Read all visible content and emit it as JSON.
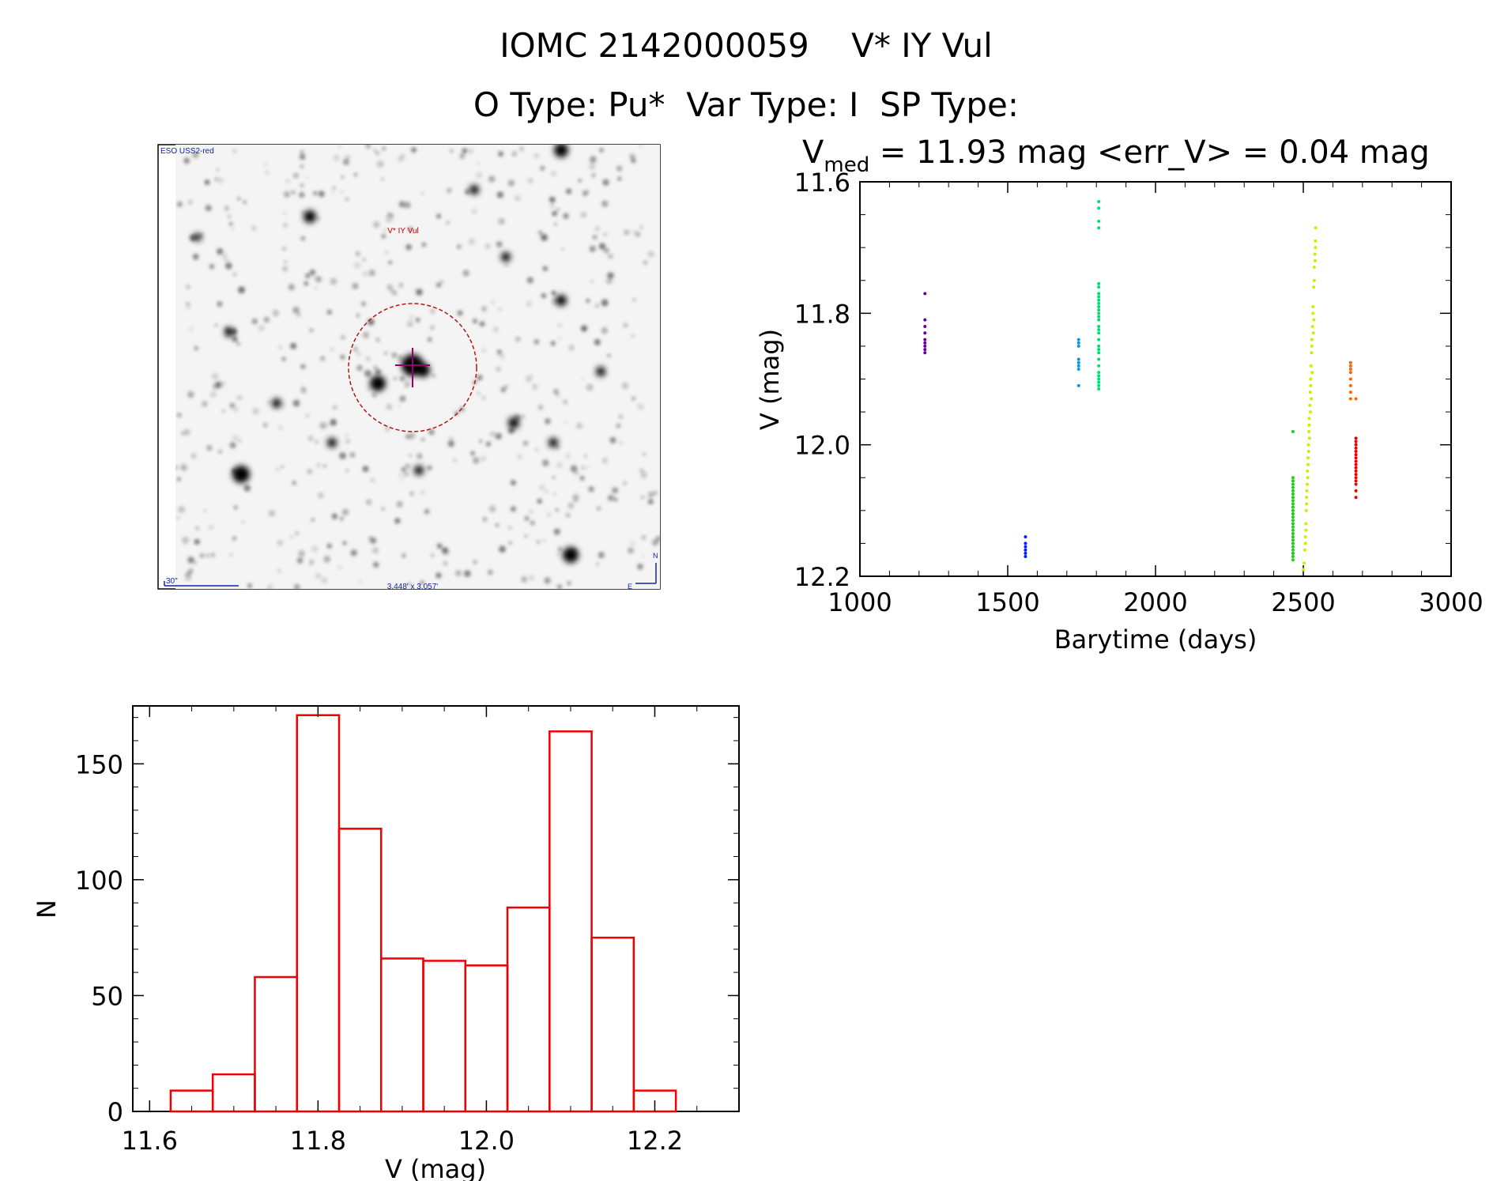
{
  "header": {
    "title": "IOMC 2142000059    V* IY Vul",
    "subtitle": "O Type: Pu*  Var Type: I  SP Type:"
  },
  "image_panel": {
    "survey_label": "ESO USS2-red",
    "target_label": "V* IY Vul",
    "scale_label": "30\"",
    "size_label": "3.448' x 3.057'",
    "north_label": "N",
    "east_label": "E"
  },
  "chart_data": [
    {
      "type": "scatter",
      "title_prefix": "V",
      "title_sub": "med",
      "title_suffix": " = 11.93 mag <err_V> = 0.04 mag",
      "xlabel": "Barytime (days)",
      "ylabel": "V (mag)",
      "xlim": [
        1000,
        3000
      ],
      "ylim": [
        12.2,
        11.6
      ],
      "y_inverted": true,
      "xticks": [
        1000,
        1500,
        2000,
        2500,
        3000
      ],
      "yticks": [
        11.6,
        11.8,
        12.0,
        12.2
      ],
      "xtick_labels": [
        "1000",
        "1500",
        "2000",
        "2500",
        "3000"
      ],
      "ytick_labels": [
        "11.6",
        "11.8",
        "12.0",
        "12.2"
      ],
      "series": [
        {
          "color": "#660099",
          "x": [
            1220,
            1220,
            1220,
            1220,
            1220,
            1220,
            1220,
            1220,
            1220
          ],
          "y": [
            11.77,
            11.81,
            11.82,
            11.83,
            11.84,
            11.845,
            11.85,
            11.855,
            11.86
          ]
        },
        {
          "color": "#0022ee",
          "x": [
            1560,
            1560,
            1560,
            1560,
            1560,
            1560
          ],
          "y": [
            12.14,
            12.15,
            12.155,
            12.16,
            12.165,
            12.17
          ]
        },
        {
          "color": "#0099ee",
          "x": [
            1740,
            1740,
            1740,
            1740,
            1740,
            1740,
            1740,
            1740
          ],
          "y": [
            11.84,
            11.845,
            11.85,
            11.87,
            11.875,
            11.88,
            11.885,
            11.91
          ]
        },
        {
          "color": "#00dd77",
          "x": [
            1808,
            1808,
            1808,
            1808,
            1808,
            1808,
            1808,
            1808,
            1808,
            1808,
            1808,
            1808,
            1808,
            1808,
            1808,
            1808,
            1808,
            1808,
            1808,
            1808,
            1808,
            1808,
            1808,
            1808,
            1808,
            1808,
            1808,
            1808,
            1808,
            1808
          ],
          "y": [
            11.63,
            11.64,
            11.66,
            11.67,
            11.755,
            11.76,
            11.77,
            11.775,
            11.78,
            11.785,
            11.79,
            11.795,
            11.8,
            11.805,
            11.81,
            11.82,
            11.825,
            11.83,
            11.84,
            11.85,
            11.855,
            11.86,
            11.87,
            11.88,
            11.89,
            11.895,
            11.9,
            11.905,
            11.91,
            11.915
          ]
        },
        {
          "color": "#22cc22",
          "x": [
            2465,
            2465,
            2465,
            2465,
            2465,
            2465,
            2465,
            2465,
            2465,
            2465,
            2465,
            2465,
            2465,
            2465,
            2465,
            2465,
            2465,
            2465,
            2465,
            2465,
            2465,
            2465,
            2465,
            2465,
            2465,
            2465,
            2465,
            2465
          ],
          "y": [
            11.98,
            12.05,
            12.055,
            12.06,
            12.065,
            12.07,
            12.075,
            12.08,
            12.085,
            12.09,
            12.095,
            12.1,
            12.105,
            12.11,
            12.115,
            12.12,
            12.125,
            12.13,
            12.135,
            12.14,
            12.145,
            12.15,
            12.155,
            12.16,
            12.165,
            12.17,
            12.175,
            12.165
          ]
        },
        {
          "color": "#ccee00",
          "x": [
            2500,
            2503,
            2505,
            2507,
            2509,
            2510,
            2511,
            2513,
            2514,
            2516,
            2517,
            2519,
            2520,
            2522,
            2523,
            2525,
            2526,
            2528,
            2529,
            2531,
            2533,
            2535,
            2537,
            2539,
            2541,
            2542,
            2507,
            2511,
            2516,
            2520,
            2525,
            2529,
            2533,
            2537,
            2541,
            2512,
            2518,
            2524,
            2530,
            2536,
            2509,
            2515,
            2521,
            2527,
            2534,
            2540
          ],
          "y": [
            12.19,
            12.18,
            12.16,
            12.14,
            12.12,
            12.1,
            12.08,
            12.06,
            12.04,
            12.02,
            12.0,
            11.98,
            11.96,
            11.94,
            11.92,
            11.9,
            11.88,
            11.86,
            11.84,
            11.82,
            11.79,
            11.76,
            11.73,
            11.71,
            11.69,
            11.67,
            12.15,
            12.09,
            12.03,
            11.97,
            11.91,
            11.85,
            11.8,
            11.75,
            11.7,
            12.07,
            12.01,
            11.95,
            11.89,
            11.81,
            12.13,
            12.05,
            11.99,
            11.93,
            11.83,
            11.72
          ]
        },
        {
          "color": "#ff6600",
          "x": [
            2660,
            2660,
            2660,
            2660,
            2660,
            2660,
            2660,
            2660,
            2678
          ],
          "y": [
            11.875,
            11.88,
            11.885,
            11.89,
            11.9,
            11.91,
            11.92,
            11.93,
            11.93
          ]
        },
        {
          "color": "#ee0000",
          "x": [
            2678,
            2678,
            2678,
            2678,
            2678,
            2678,
            2678,
            2678,
            2678,
            2678,
            2678,
            2678,
            2678,
            2678,
            2678,
            2678,
            2678
          ],
          "y": [
            11.99,
            11.995,
            12.0,
            12.005,
            12.01,
            12.015,
            12.02,
            12.025,
            12.03,
            12.035,
            12.04,
            12.045,
            12.05,
            12.055,
            12.06,
            12.07,
            12.08
          ]
        }
      ]
    },
    {
      "type": "histogram",
      "xlabel": "V (mag)",
      "ylabel": "N",
      "xlim": [
        11.58,
        12.3
      ],
      "ylim": [
        0,
        175
      ],
      "xticks": [
        11.6,
        11.8,
        12.0,
        12.2
      ],
      "yticks": [
        0,
        50,
        100,
        150
      ],
      "xtick_labels": [
        "11.6",
        "11.8",
        "12.0",
        "12.2"
      ],
      "ytick_labels": [
        "0",
        "50",
        "100",
        "150"
      ],
      "bin_edges": [
        11.625,
        11.675,
        11.725,
        11.775,
        11.825,
        11.875,
        11.925,
        11.975,
        12.025,
        12.075,
        12.125,
        12.175,
        12.225
      ],
      "values": [
        9,
        16,
        58,
        171,
        122,
        66,
        65,
        63,
        88,
        164,
        75,
        9
      ],
      "color": "#ee0000"
    }
  ]
}
